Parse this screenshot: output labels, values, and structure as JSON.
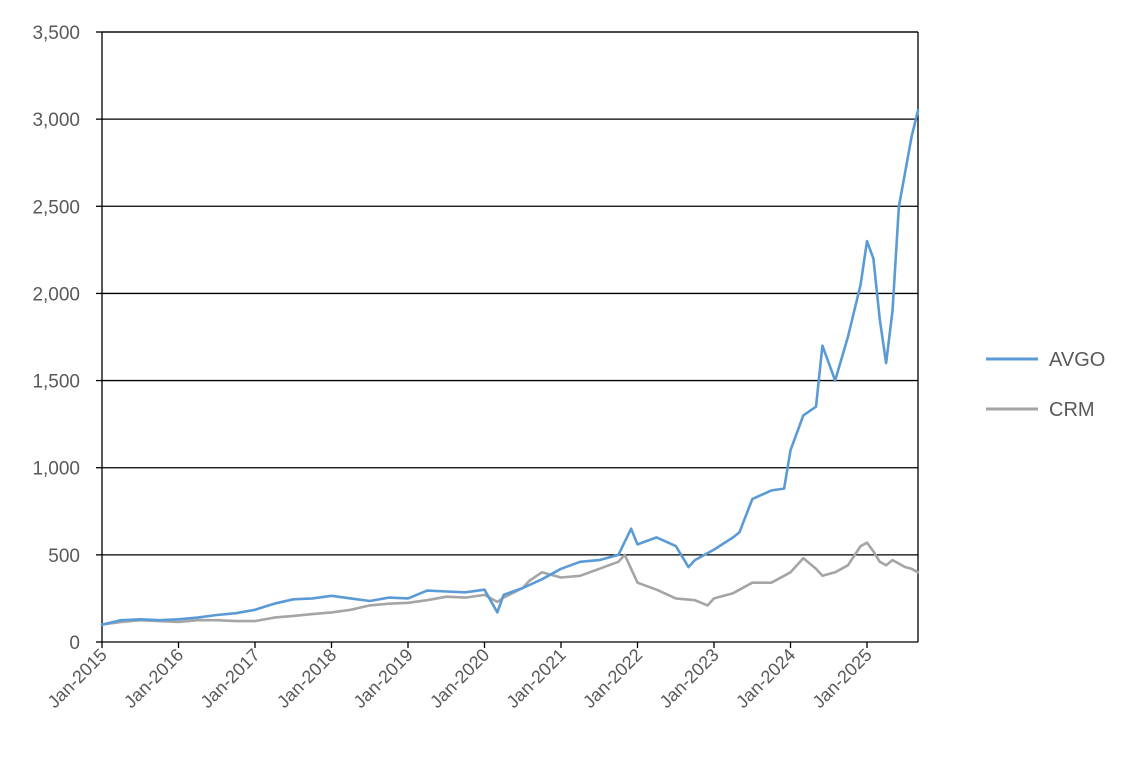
{
  "chart_data": {
    "type": "line",
    "title": "",
    "xlabel": "",
    "ylabel": "",
    "ylim": [
      0,
      3500
    ],
    "xlim": [
      "2015-01",
      "2025-09"
    ],
    "yticks": [
      0,
      500,
      1000,
      1500,
      2000,
      2500,
      3000,
      3500
    ],
    "ytick_labels": [
      "0",
      "500",
      "1,000",
      "1,500",
      "2,000",
      "2,500",
      "3,000",
      "3,500"
    ],
    "xticks": [
      "2015-01",
      "2016-01",
      "2017-01",
      "2018-01",
      "2019-01",
      "2020-01",
      "2021-01",
      "2022-01",
      "2023-01",
      "2024-01",
      "2025-01"
    ],
    "xtick_labels": [
      "Jan-2015",
      "Jan-2016",
      "Jan-2017",
      "Jan-2018",
      "Jan-2019",
      "Jan-2020",
      "Jan-2021",
      "Jan-2022",
      "Jan-2023",
      "Jan-2024",
      "Jan-2025"
    ],
    "grid": "horizontal",
    "legend": "right",
    "colors": {
      "AVGO": "#5b9bd5",
      "CRM": "#a5a5a5",
      "grid": "#000000"
    },
    "series": [
      {
        "name": "AVGO",
        "x": [
          "2015-01",
          "2015-04",
          "2015-07",
          "2015-10",
          "2016-01",
          "2016-04",
          "2016-07",
          "2016-10",
          "2017-01",
          "2017-04",
          "2017-07",
          "2017-10",
          "2018-01",
          "2018-04",
          "2018-07",
          "2018-10",
          "2019-01",
          "2019-04",
          "2019-07",
          "2019-10",
          "2020-01",
          "2020-03",
          "2020-04",
          "2020-07",
          "2020-10",
          "2021-01",
          "2021-04",
          "2021-07",
          "2021-10",
          "2021-12",
          "2022-01",
          "2022-04",
          "2022-07",
          "2022-09",
          "2022-10",
          "2023-01",
          "2023-04",
          "2023-05",
          "2023-07",
          "2023-10",
          "2023-12",
          "2024-01",
          "2024-03",
          "2024-05",
          "2024-06",
          "2024-07",
          "2024-08",
          "2024-10",
          "2024-12",
          "2025-01",
          "2025-02",
          "2025-03",
          "2025-04",
          "2025-05",
          "2025-06",
          "2025-07",
          "2025-08",
          "2025-09"
        ],
        "values": [
          100,
          125,
          130,
          125,
          130,
          140,
          155,
          165,
          185,
          220,
          245,
          250,
          265,
          250,
          235,
          255,
          250,
          295,
          290,
          285,
          300,
          170,
          270,
          310,
          360,
          420,
          460,
          470,
          500,
          650,
          560,
          600,
          550,
          430,
          470,
          530,
          600,
          630,
          820,
          870,
          880,
          1100,
          1300,
          1350,
          1700,
          1600,
          1500,
          1750,
          2050,
          2300,
          2200,
          1850,
          1600,
          1900,
          2500,
          2700,
          2900,
          3050
        ]
      },
      {
        "name": "CRM",
        "x": [
          "2015-01",
          "2015-04",
          "2015-07",
          "2015-10",
          "2016-01",
          "2016-04",
          "2016-07",
          "2016-10",
          "2017-01",
          "2017-04",
          "2017-07",
          "2017-10",
          "2018-01",
          "2018-04",
          "2018-07",
          "2018-10",
          "2019-01",
          "2019-04",
          "2019-07",
          "2019-10",
          "2020-01",
          "2020-03",
          "2020-04",
          "2020-07",
          "2020-08",
          "2020-10",
          "2021-01",
          "2021-04",
          "2021-07",
          "2021-10",
          "2021-11",
          "2022-01",
          "2022-04",
          "2022-07",
          "2022-10",
          "2022-12",
          "2023-01",
          "2023-04",
          "2023-07",
          "2023-10",
          "2024-01",
          "2024-03",
          "2024-05",
          "2024-06",
          "2024-08",
          "2024-10",
          "2024-12",
          "2025-01",
          "2025-02",
          "2025-03",
          "2025-04",
          "2025-05",
          "2025-06",
          "2025-07",
          "2025-08",
          "2025-09"
        ],
        "values": [
          100,
          115,
          125,
          120,
          115,
          125,
          125,
          120,
          120,
          140,
          150,
          160,
          170,
          185,
          210,
          220,
          225,
          240,
          260,
          255,
          270,
          230,
          255,
          310,
          350,
          400,
          370,
          380,
          420,
          460,
          500,
          340,
          300,
          250,
          240,
          210,
          250,
          280,
          340,
          340,
          400,
          480,
          420,
          380,
          400,
          440,
          550,
          570,
          520,
          460,
          440,
          470,
          450,
          430,
          420,
          400
        ]
      }
    ]
  }
}
